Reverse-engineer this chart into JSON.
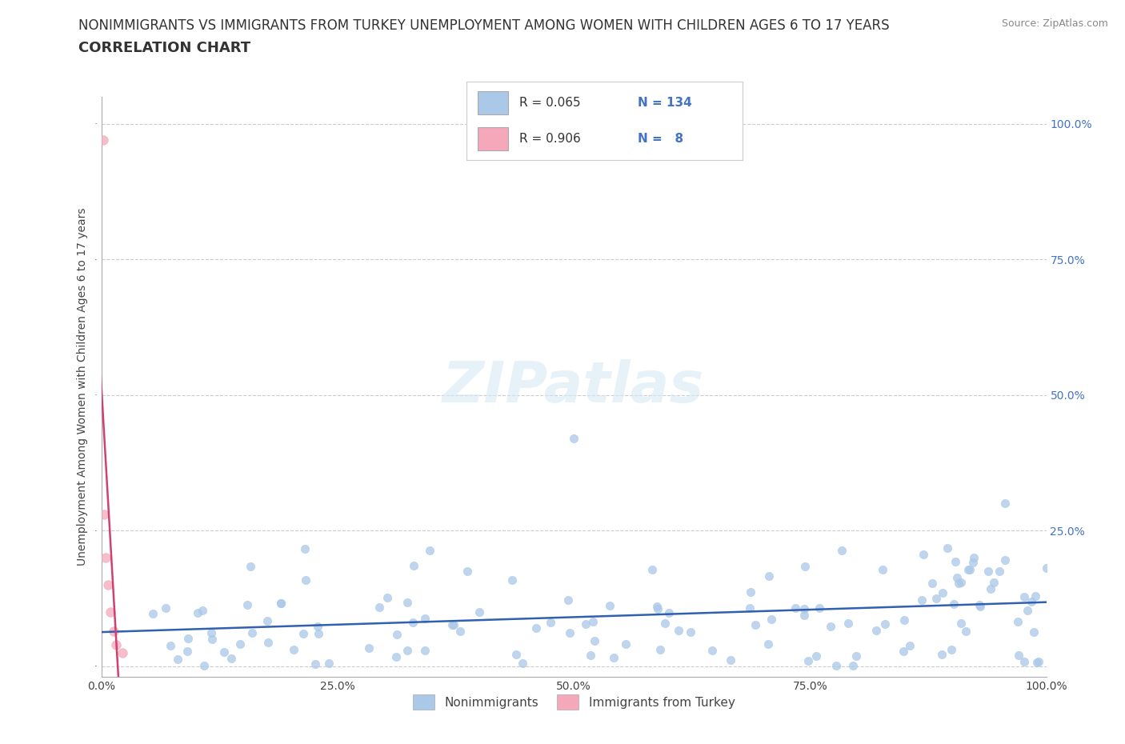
{
  "title_line1": "NONIMMIGRANTS VS IMMIGRANTS FROM TURKEY UNEMPLOYMENT AMONG WOMEN WITH CHILDREN AGES 6 TO 17 YEARS",
  "title_line2": "CORRELATION CHART",
  "source": "Source: ZipAtlas.com",
  "ylabel": "Unemployment Among Women with Children Ages 6 to 17 years",
  "xlim": [
    0.0,
    1.0
  ],
  "ylim": [
    -0.02,
    1.05
  ],
  "xticks": [
    0.0,
    0.25,
    0.5,
    0.75,
    1.0
  ],
  "yticks": [
    0.0,
    0.25,
    0.5,
    0.75,
    1.0
  ],
  "xticklabels": [
    "0.0%",
    "25.0%",
    "50.0%",
    "75.0%",
    "100.0%"
  ],
  "yticklabels_right": [
    "",
    "25.0%",
    "50.0%",
    "75.0%",
    "100.0%"
  ],
  "background_color": "#ffffff",
  "grid_color": "#cccccc",
  "nonimmigrant_color": "#aac8e8",
  "immigrant_color": "#f4a8ba",
  "nonimmigrant_line_color": "#3060b0",
  "immigrant_line_color": "#d04070",
  "legend_R1": "0.065",
  "legend_N1": "134",
  "legend_R2": "0.906",
  "legend_N2": "8",
  "title_fontsize": 12,
  "subtitle_fontsize": 13,
  "axis_label_fontsize": 10,
  "tick_fontsize": 10,
  "legend_fontsize": 12
}
